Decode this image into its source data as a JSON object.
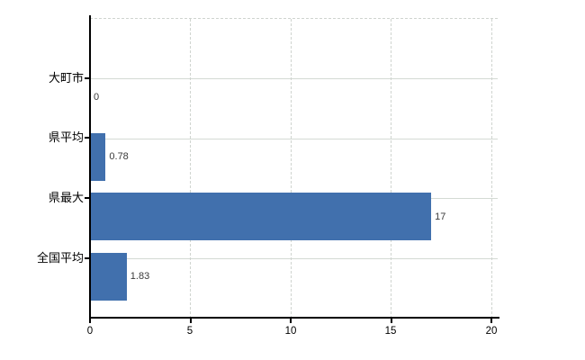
{
  "chart_data": {
    "type": "bar",
    "orientation": "horizontal",
    "title": "",
    "xlabel": "",
    "ylabel": "",
    "categories": [
      "大町市",
      "県平均",
      "県最大",
      "全国平均"
    ],
    "values": [
      0,
      0.78,
      17,
      1.83
    ],
    "value_labels": [
      "0",
      "0.78",
      "17",
      "1.83"
    ],
    "xlim": [
      0,
      20
    ],
    "xticks": [
      0,
      5,
      10,
      15,
      20
    ],
    "xtick_labels": [
      "0",
      "5",
      "10",
      "15",
      "20"
    ],
    "grid": true,
    "legend": false,
    "colors": {
      "bar": "#4170ad",
      "grid_solid": "#d4dad4",
      "grid_dashed": "#cfd4cf",
      "axis": "#000000",
      "text": "#000000",
      "value_text": "#3a3a3a",
      "background": "#ffffff"
    }
  }
}
